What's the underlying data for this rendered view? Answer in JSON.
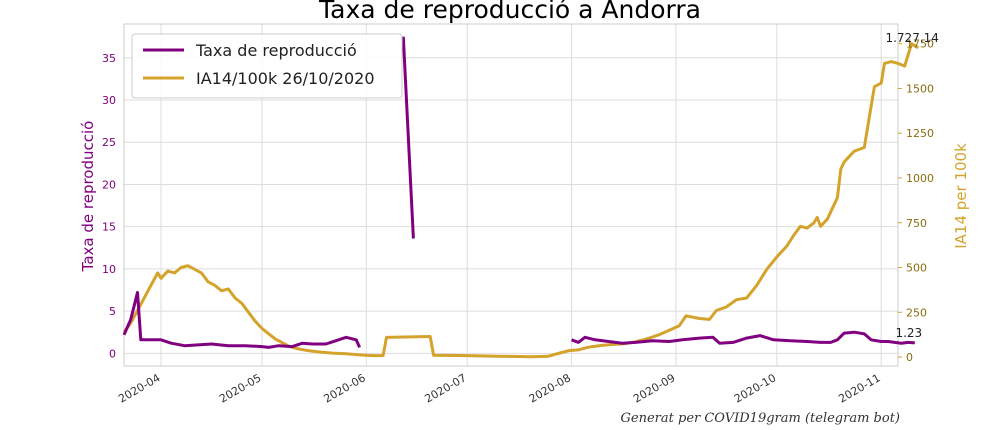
{
  "chart_data": {
    "type": "line",
    "title": "Taxa de reproducció a Andorra",
    "ylabel_left": "Taxa de reproducció",
    "ylabel_right": "IA14 per 100k",
    "ylim_left": [
      -1.5,
      39
    ],
    "ylim_right": [
      -50,
      1860
    ],
    "xlim": [
      "2020-03-21",
      "2020-11-06"
    ],
    "x_ticks": [
      "2020-04-01",
      "2020-05-01",
      "2020-06-01",
      "2020-07-01",
      "2020-08-01",
      "2020-09-01",
      "2020-10-01",
      "2020-11-01"
    ],
    "x_tick_labels": [
      "2020-04",
      "2020-05",
      "2020-06",
      "2020-07",
      "2020-08",
      "2020-09",
      "2020-10",
      "2020-11"
    ],
    "y_ticks_left": [
      0,
      5,
      10,
      15,
      20,
      25,
      30,
      35
    ],
    "y_ticks_right": [
      0,
      250,
      500,
      750,
      1000,
      1250,
      1500,
      1750
    ],
    "grid": true,
    "legend_placement": "top-left",
    "colors": {
      "r": "#800080",
      "ia": "#d4a32b"
    },
    "series": [
      {
        "name": "Taxa de reproducció",
        "axis": "left",
        "segments": [
          [
            [
              "2020-03-21",
              2.2
            ],
            [
              "2020-03-23",
              4.0
            ],
            [
              "2020-03-25",
              7.2
            ],
            [
              "2020-03-26",
              1.6
            ],
            [
              "2020-03-29",
              1.6
            ],
            [
              "2020-04-01",
              1.6
            ],
            [
              "2020-04-04",
              1.2
            ],
            [
              "2020-04-08",
              0.9
            ],
            [
              "2020-04-12",
              1.0
            ],
            [
              "2020-04-16",
              1.1
            ],
            [
              "2020-04-21",
              0.9
            ],
            [
              "2020-04-26",
              0.9
            ],
            [
              "2020-05-01",
              0.8
            ],
            [
              "2020-05-03",
              0.7
            ],
            [
              "2020-05-06",
              0.9
            ],
            [
              "2020-05-10",
              0.8
            ],
            [
              "2020-05-13",
              1.2
            ],
            [
              "2020-05-16",
              1.1
            ],
            [
              "2020-05-20",
              1.1
            ],
            [
              "2020-05-23",
              1.5
            ],
            [
              "2020-05-26",
              1.9
            ],
            [
              "2020-05-29",
              1.6
            ],
            [
              "2020-05-30",
              0.7
            ]
          ],
          [
            [
              "2020-06-12",
              37.5
            ],
            [
              "2020-06-15",
              13.6
            ]
          ],
          [
            [
              "2020-08-01",
              1.6
            ],
            [
              "2020-08-03",
              1.3
            ],
            [
              "2020-08-05",
              1.9
            ],
            [
              "2020-08-08",
              1.6
            ],
            [
              "2020-08-12",
              1.4
            ],
            [
              "2020-08-16",
              1.2
            ],
            [
              "2020-08-20",
              1.3
            ],
            [
              "2020-08-25",
              1.5
            ],
            [
              "2020-08-30",
              1.4
            ],
            [
              "2020-09-03",
              1.6
            ],
            [
              "2020-09-08",
              1.8
            ],
            [
              "2020-09-12",
              1.9
            ],
            [
              "2020-09-14",
              1.2
            ],
            [
              "2020-09-18",
              1.3
            ],
            [
              "2020-09-22",
              1.8
            ],
            [
              "2020-09-26",
              2.1
            ],
            [
              "2020-09-30",
              1.6
            ],
            [
              "2020-10-05",
              1.5
            ],
            [
              "2020-10-10",
              1.4
            ],
            [
              "2020-10-14",
              1.3
            ],
            [
              "2020-10-17",
              1.3
            ],
            [
              "2020-10-19",
              1.6
            ],
            [
              "2020-10-21",
              2.4
            ],
            [
              "2020-10-24",
              2.5
            ],
            [
              "2020-10-27",
              2.3
            ],
            [
              "2020-10-29",
              1.6
            ],
            [
              "2020-11-01",
              1.4
            ],
            [
              "2020-11-03",
              1.4
            ],
            [
              "2020-11-05",
              1.3
            ],
            [
              "2020-11-07",
              1.2
            ],
            [
              "2020-11-09",
              1.3
            ],
            [
              "2020-11-11",
              1.23
            ]
          ]
        ]
      },
      {
        "name": "IA14/100k 26/10/2020",
        "axis": "right",
        "points": [
          [
            "2020-03-21",
            140
          ],
          [
            "2020-03-23",
            190
          ],
          [
            "2020-03-25",
            260
          ],
          [
            "2020-03-27",
            330
          ],
          [
            "2020-03-29",
            400
          ],
          [
            "2020-03-31",
            470
          ],
          [
            "2020-04-01",
            440
          ],
          [
            "2020-04-03",
            480
          ],
          [
            "2020-04-05",
            470
          ],
          [
            "2020-04-07",
            500
          ],
          [
            "2020-04-09",
            510
          ],
          [
            "2020-04-11",
            490
          ],
          [
            "2020-04-13",
            470
          ],
          [
            "2020-04-15",
            420
          ],
          [
            "2020-04-17",
            400
          ],
          [
            "2020-04-19",
            370
          ],
          [
            "2020-04-21",
            380
          ],
          [
            "2020-04-23",
            330
          ],
          [
            "2020-04-25",
            300
          ],
          [
            "2020-04-27",
            250
          ],
          [
            "2020-04-29",
            200
          ],
          [
            "2020-05-01",
            160
          ],
          [
            "2020-05-03",
            130
          ],
          [
            "2020-05-05",
            100
          ],
          [
            "2020-05-07",
            80
          ],
          [
            "2020-05-09",
            60
          ],
          [
            "2020-05-12",
            45
          ],
          [
            "2020-05-15",
            35
          ],
          [
            "2020-05-18",
            28
          ],
          [
            "2020-05-22",
            22
          ],
          [
            "2020-05-26",
            18
          ],
          [
            "2020-05-30",
            12
          ],
          [
            "2020-06-03",
            8
          ],
          [
            "2020-06-06",
            8
          ],
          [
            "2020-06-07",
            110
          ],
          [
            "2020-06-20",
            115
          ],
          [
            "2020-06-21",
            10
          ],
          [
            "2020-07-01",
            8
          ],
          [
            "2020-07-10",
            5
          ],
          [
            "2020-07-16",
            3
          ],
          [
            "2020-07-20",
            2
          ],
          [
            "2020-07-25",
            4
          ],
          [
            "2020-07-28",
            20
          ],
          [
            "2020-07-31",
            35
          ],
          [
            "2020-08-03",
            40
          ],
          [
            "2020-08-06",
            55
          ],
          [
            "2020-08-10",
            65
          ],
          [
            "2020-08-13",
            70
          ],
          [
            "2020-08-17",
            75
          ],
          [
            "2020-08-20",
            85
          ],
          [
            "2020-08-24",
            105
          ],
          [
            "2020-08-27",
            125
          ],
          [
            "2020-08-30",
            150
          ],
          [
            "2020-09-02",
            175
          ],
          [
            "2020-09-04",
            230
          ],
          [
            "2020-09-08",
            215
          ],
          [
            "2020-09-11",
            210
          ],
          [
            "2020-09-13",
            260
          ],
          [
            "2020-09-16",
            280
          ],
          [
            "2020-09-19",
            320
          ],
          [
            "2020-09-22",
            330
          ],
          [
            "2020-09-25",
            400
          ],
          [
            "2020-09-28",
            490
          ],
          [
            "2020-10-01",
            560
          ],
          [
            "2020-10-04",
            620
          ],
          [
            "2020-10-06",
            680
          ],
          [
            "2020-10-08",
            730
          ],
          [
            "2020-10-10",
            720
          ],
          [
            "2020-10-12",
            750
          ],
          [
            "2020-10-13",
            780
          ],
          [
            "2020-10-14",
            730
          ],
          [
            "2020-10-16",
            770
          ],
          [
            "2020-10-19",
            890
          ],
          [
            "2020-10-20",
            1050
          ],
          [
            "2020-10-21",
            1090
          ],
          [
            "2020-10-23",
            1130
          ],
          [
            "2020-10-24",
            1150
          ],
          [
            "2020-10-27",
            1170
          ],
          [
            "2020-10-29",
            1400
          ],
          [
            "2020-10-30",
            1510
          ],
          [
            "2020-11-01",
            1530
          ],
          [
            "2020-11-02",
            1640
          ],
          [
            "2020-11-04",
            1650
          ],
          [
            "2020-11-06",
            1640
          ],
          [
            "2020-11-08",
            1625
          ],
          [
            "2020-11-10",
            1750
          ],
          [
            "2020-11-12",
            1727.14
          ]
        ]
      }
    ],
    "annotations": [
      {
        "text": "1.727.14",
        "x": "2020-11-12",
        "axis": "right",
        "y": 1727.14
      },
      {
        "text": "1.23",
        "x": "2020-11-11",
        "axis": "left",
        "y": 1.23
      }
    ]
  },
  "footer": "Generat per COVID19gram (telegram bot)"
}
